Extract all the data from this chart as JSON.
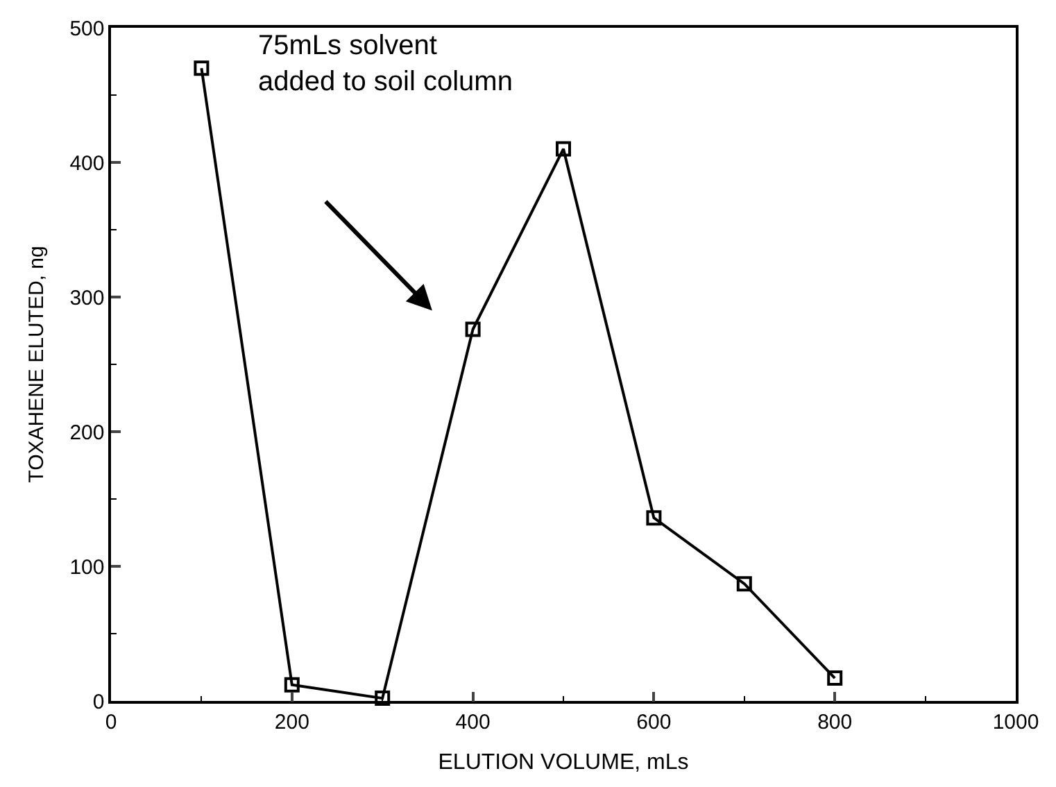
{
  "chart_data": {
    "type": "line",
    "xlabel": "ELUTION VOLUME, mLs",
    "ylabel": "TOXAHENE ELUTED, ng",
    "x": [
      100,
      200,
      300,
      400,
      500,
      600,
      700,
      800
    ],
    "series": [
      {
        "color": "#000000",
        "values": [
          470,
          12,
          2,
          276,
          410,
          136,
          87,
          17
        ]
      }
    ],
    "xlim": [
      0,
      1000
    ],
    "xticks": [
      0,
      200,
      400,
      600,
      800,
      1000
    ],
    "ylim": [
      0,
      500
    ],
    "yticks": [
      0,
      100,
      200,
      300,
      400,
      500
    ],
    "annotations": [
      "75mLs solvent\nadded to soil column"
    ],
    "marker": "square",
    "line_style": "solid"
  }
}
